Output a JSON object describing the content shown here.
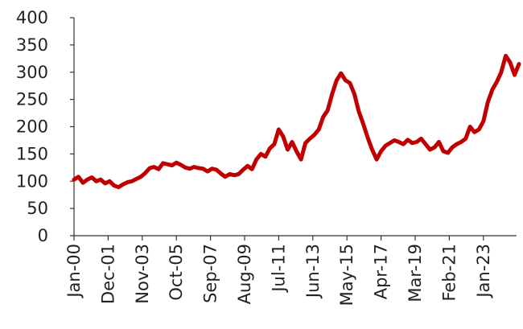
{
  "chart_data": {
    "type": "line",
    "title": "",
    "xlabel": "",
    "ylabel": "",
    "ylim": [
      0,
      400
    ],
    "y_ticks": [
      0,
      50,
      100,
      150,
      200,
      250,
      300,
      350,
      400
    ],
    "x_tick_labels": [
      "Jan-00",
      "Dec-01",
      "Nov-03",
      "Oct-05",
      "Sep-07",
      "Aug-09",
      "Jul-11",
      "Jun-13",
      "May-15",
      "Apr-17",
      "Mar-19",
      "Feb-21",
      "Jan-23"
    ],
    "x_start": "2000-01",
    "grid": false,
    "legend": "none",
    "line_color": "#c00000",
    "series": [
      {
        "points": [
          [
            "2000-01",
            103
          ],
          [
            "2000-04",
            108
          ],
          [
            "2000-07",
            97
          ],
          [
            "2000-10",
            103
          ],
          [
            "2001-01",
            107
          ],
          [
            "2001-04",
            100
          ],
          [
            "2001-07",
            103
          ],
          [
            "2001-10",
            96
          ],
          [
            "2002-01",
            100
          ],
          [
            "2002-04",
            92
          ],
          [
            "2002-07",
            89
          ],
          [
            "2002-10",
            94
          ],
          [
            "2003-01",
            98
          ],
          [
            "2003-04",
            100
          ],
          [
            "2003-07",
            104
          ],
          [
            "2003-10",
            108
          ],
          [
            "2004-01",
            115
          ],
          [
            "2004-04",
            124
          ],
          [
            "2004-07",
            126
          ],
          [
            "2004-10",
            122
          ],
          [
            "2005-01",
            133
          ],
          [
            "2005-04",
            131
          ],
          [
            "2005-07",
            129
          ],
          [
            "2005-10",
            134
          ],
          [
            "2006-01",
            130
          ],
          [
            "2006-04",
            125
          ],
          [
            "2006-07",
            123
          ],
          [
            "2006-10",
            126
          ],
          [
            "2007-01",
            124
          ],
          [
            "2007-04",
            123
          ],
          [
            "2007-07",
            118
          ],
          [
            "2007-10",
            123
          ],
          [
            "2008-01",
            121
          ],
          [
            "2008-04",
            114
          ],
          [
            "2008-07",
            108
          ],
          [
            "2008-10",
            113
          ],
          [
            "2009-01",
            111
          ],
          [
            "2009-04",
            113
          ],
          [
            "2009-07",
            121
          ],
          [
            "2009-10",
            128
          ],
          [
            "2010-01",
            122
          ],
          [
            "2010-04",
            140
          ],
          [
            "2010-07",
            150
          ],
          [
            "2010-10",
            145
          ],
          [
            "2011-01",
            160
          ],
          [
            "2011-04",
            168
          ],
          [
            "2011-07",
            195
          ],
          [
            "2011-10",
            182
          ],
          [
            "2012-01",
            158
          ],
          [
            "2012-04",
            172
          ],
          [
            "2012-07",
            155
          ],
          [
            "2012-10",
            140
          ],
          [
            "2013-01",
            170
          ],
          [
            "2013-04",
            178
          ],
          [
            "2013-07",
            185
          ],
          [
            "2013-10",
            195
          ],
          [
            "2014-01",
            218
          ],
          [
            "2014-04",
            230
          ],
          [
            "2014-07",
            260
          ],
          [
            "2014-10",
            285
          ],
          [
            "2015-01",
            298
          ],
          [
            "2015-04",
            285
          ],
          [
            "2015-07",
            280
          ],
          [
            "2015-10",
            260
          ],
          [
            "2016-01",
            228
          ],
          [
            "2016-04",
            205
          ],
          [
            "2016-07",
            180
          ],
          [
            "2016-10",
            158
          ],
          [
            "2017-01",
            140
          ],
          [
            "2017-04",
            155
          ],
          [
            "2017-07",
            165
          ],
          [
            "2017-10",
            170
          ],
          [
            "2018-01",
            175
          ],
          [
            "2018-04",
            172
          ],
          [
            "2018-07",
            168
          ],
          [
            "2018-10",
            176
          ],
          [
            "2019-01",
            170
          ],
          [
            "2019-04",
            172
          ],
          [
            "2019-07",
            178
          ],
          [
            "2019-10",
            168
          ],
          [
            "2020-01",
            158
          ],
          [
            "2020-04",
            162
          ],
          [
            "2020-07",
            172
          ],
          [
            "2020-10",
            155
          ],
          [
            "2021-01",
            152
          ],
          [
            "2021-04",
            162
          ],
          [
            "2021-07",
            168
          ],
          [
            "2021-10",
            172
          ],
          [
            "2022-01",
            178
          ],
          [
            "2022-04",
            200
          ],
          [
            "2022-07",
            190
          ],
          [
            "2022-10",
            195
          ],
          [
            "2023-01",
            210
          ],
          [
            "2023-04",
            245
          ],
          [
            "2023-07",
            268
          ],
          [
            "2023-10",
            282
          ],
          [
            "2024-01",
            300
          ],
          [
            "2024-04",
            330
          ],
          [
            "2024-07",
            318
          ],
          [
            "2024-10",
            295
          ],
          [
            "2025-01",
            315
          ]
        ]
      }
    ]
  }
}
